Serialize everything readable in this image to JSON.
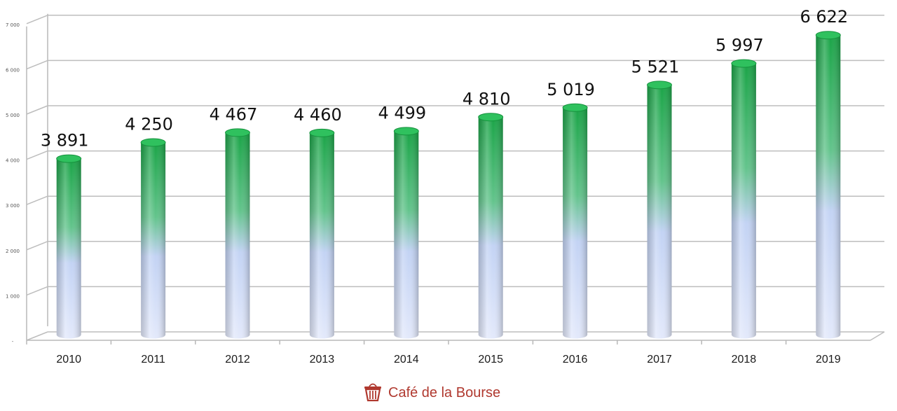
{
  "chart_data": {
    "type": "bar",
    "style": "3d-cylinder",
    "categories": [
      "2010",
      "2011",
      "2012",
      "2013",
      "2014",
      "2015",
      "2016",
      "2017",
      "2018",
      "2019"
    ],
    "values": [
      3891,
      4250,
      4467,
      4460,
      4499,
      4810,
      5019,
      5521,
      5997,
      6622
    ],
    "data_labels": [
      "3 891",
      "4 250",
      "4 467",
      "4 460",
      "4 499",
      "4 810",
      "5 019",
      "5 521",
      "5 997",
      "6 622"
    ],
    "yticks": [
      0,
      1000,
      2000,
      3000,
      4000,
      5000,
      6000,
      7000
    ],
    "ytick_labels": [
      "-",
      "1 000",
      "2 000",
      "3 000",
      "4 000",
      "5 000",
      "6 000",
      "7 000"
    ],
    "ylim": [
      0,
      7000
    ],
    "grid": true,
    "legend": "none",
    "colors": {
      "bar_top": "#1faa4a",
      "bar_bottom": "#dde6fb",
      "grid": "#bdbdbd"
    }
  },
  "brand": {
    "text": "Café de la Bourse",
    "icon": "basket-icon",
    "color": "#b0392f"
  }
}
